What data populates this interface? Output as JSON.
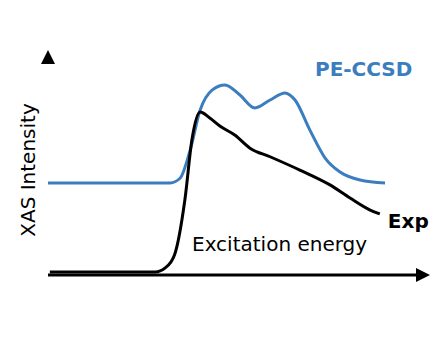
{
  "chart_data": {
    "type": "line",
    "x_label": "Excitation energy",
    "y_label": "XAS Intensity",
    "xlim": [
      0,
      100
    ],
    "ylim": [
      0,
      100
    ],
    "tick_labels": false,
    "grid": false,
    "series": [
      {
        "name": "PE-CCSD",
        "color": "#3b7dbf",
        "x": [
          0,
          32.8,
          35.5,
          38.2,
          40.9,
          44.1,
          47.6,
          51.6,
          55.6,
          59.7,
          63.7,
          66.4,
          70.4,
          74.5,
          78.5,
          83.9,
          90.6
        ],
        "values": [
          42.8,
          42.8,
          45,
          58,
          76.7,
          86,
          88.4,
          83.7,
          77.7,
          81.4,
          84.7,
          81.4,
          67.4,
          54.4,
          47.9,
          44.2,
          42.8
        ]
      },
      {
        "name": "Exp",
        "color": "#000000",
        "x": [
          0.5,
          14,
          28.8,
          31.5,
          34,
          36.8,
          38.7,
          40.9,
          43.5,
          46.2,
          50.3,
          54.3,
          59.7,
          67.7,
          75.8,
          81.2,
          86.6,
          89.2
        ],
        "values": [
          1.4,
          1.4,
          1.4,
          3.3,
          9.3,
          35,
          63,
          75.8,
          73,
          69.3,
          65,
          59,
          55,
          48.8,
          41.9,
          35.8,
          30.2,
          28.4
        ]
      }
    ]
  }
}
